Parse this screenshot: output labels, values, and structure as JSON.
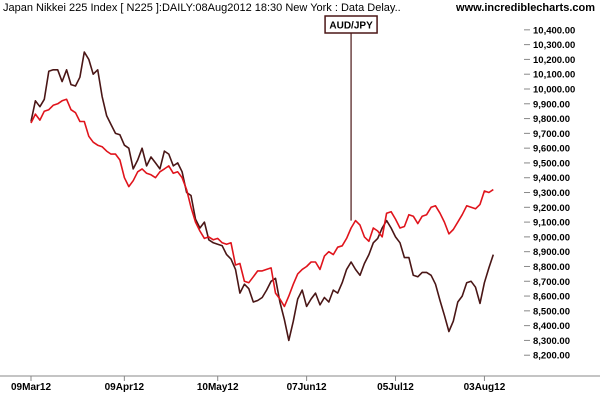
{
  "header": {
    "title": "Japan Nikkei 225 Index [ N225 ]:DAILY:08Aug2012 18:30 New York : Data Delay..",
    "site": "www.incrediblecharts.com"
  },
  "colors": {
    "nikkei_line": "#4a1616",
    "audjpy_line": "#e0141c",
    "annotation_border": "#4a1616",
    "axis": "#888888",
    "text": "#000000"
  },
  "chart_data": {
    "type": "line",
    "title": "Japan Nikkei 225 Index [ N225 ]:DAILY:08Aug2012 18:30 New York : Data Delay..",
    "x_tick_labels": [
      "09Mar12",
      "09Apr12",
      "10May12",
      "07Jun12",
      "05Jul12",
      "03Aug12"
    ],
    "x_tick_index": [
      0,
      21,
      42,
      62,
      82,
      102
    ],
    "y_ticks": [
      8200,
      8300,
      8400,
      8500,
      8600,
      8700,
      8800,
      8900,
      9000,
      9100,
      9200,
      9300,
      9400,
      9500,
      9600,
      9700,
      9800,
      9900,
      10000,
      10100,
      10200,
      10300,
      10400
    ],
    "y_tick_labels": [
      "8,200.00",
      "8,300.00",
      "8,400.00",
      "8,500.00",
      "8,600.00",
      "8,700.00",
      "8,800.00",
      "8,900.00",
      "9,000.00",
      "9,100.00",
      "9,200.00",
      "9,300.00",
      "9,400.00",
      "9,500.00",
      "9,600.00",
      "9,700.00",
      "9,800.00",
      "9,900.00",
      "10,000.00",
      "10,100.00",
      "10,200.00",
      "10,300.00",
      "10,400.00"
    ],
    "ylim": [
      8100,
      10480
    ],
    "x_count": 111,
    "annotation": {
      "label": "AUD/JPY",
      "at_index": 72,
      "at_value": 9110
    },
    "series": [
      {
        "key": "nikkei",
        "points": [
          [
            0,
            9780
          ],
          [
            1,
            9920
          ],
          [
            2,
            9880
          ],
          [
            3,
            9930
          ],
          [
            4,
            10120
          ],
          [
            5,
            10130
          ],
          [
            6,
            10130
          ],
          [
            7,
            10050
          ],
          [
            8,
            10130
          ],
          [
            9,
            10030
          ],
          [
            10,
            10020
          ],
          [
            11,
            10080
          ],
          [
            12,
            10250
          ],
          [
            13,
            10200
          ],
          [
            14,
            10100
          ],
          [
            15,
            10130
          ],
          [
            16,
            9950
          ],
          [
            17,
            9820
          ],
          [
            18,
            9760
          ],
          [
            19,
            9700
          ],
          [
            20,
            9690
          ],
          [
            21,
            9620
          ],
          [
            22,
            9600
          ],
          [
            23,
            9460
          ],
          [
            24,
            9520
          ],
          [
            25,
            9600
          ],
          [
            26,
            9480
          ],
          [
            27,
            9540
          ],
          [
            28,
            9500
          ],
          [
            29,
            9460
          ],
          [
            30,
            9580
          ],
          [
            31,
            9560
          ],
          [
            32,
            9480
          ],
          [
            33,
            9500
          ],
          [
            34,
            9440
          ],
          [
            35,
            9300
          ],
          [
            36,
            9280
          ],
          [
            37,
            9120
          ],
          [
            38,
            9060
          ],
          [
            39,
            9100
          ],
          [
            40,
            8980
          ],
          [
            41,
            8960
          ],
          [
            42,
            8950
          ],
          [
            43,
            8940
          ],
          [
            44,
            8880
          ],
          [
            45,
            8850
          ],
          [
            46,
            8780
          ],
          [
            47,
            8620
          ],
          [
            48,
            8680
          ],
          [
            49,
            8650
          ],
          [
            50,
            8560
          ],
          [
            51,
            8570
          ],
          [
            52,
            8590
          ],
          [
            53,
            8640
          ],
          [
            54,
            8700
          ],
          [
            55,
            8720
          ],
          [
            56,
            8560
          ],
          [
            57,
            8440
          ],
          [
            58,
            8300
          ],
          [
            59,
            8430
          ],
          [
            60,
            8580
          ],
          [
            61,
            8640
          ],
          [
            62,
            8530
          ],
          [
            63,
            8580
          ],
          [
            64,
            8620
          ],
          [
            65,
            8540
          ],
          [
            66,
            8590
          ],
          [
            67,
            8560
          ],
          [
            68,
            8640
          ],
          [
            69,
            8620
          ],
          [
            70,
            8690
          ],
          [
            71,
            8780
          ],
          [
            72,
            8830
          ],
          [
            73,
            8780
          ],
          [
            74,
            8740
          ],
          [
            75,
            8820
          ],
          [
            76,
            8880
          ],
          [
            77,
            8960
          ],
          [
            78,
            8990
          ],
          [
            79,
            9060
          ],
          [
            80,
            9110
          ],
          [
            81,
            9060
          ],
          [
            82,
            9000
          ],
          [
            83,
            8960
          ],
          [
            84,
            8860
          ],
          [
            85,
            8860
          ],
          [
            86,
            8740
          ],
          [
            87,
            8730
          ],
          [
            88,
            8760
          ],
          [
            89,
            8760
          ],
          [
            90,
            8740
          ],
          [
            91,
            8680
          ],
          [
            92,
            8570
          ],
          [
            93,
            8470
          ],
          [
            94,
            8360
          ],
          [
            95,
            8430
          ],
          [
            96,
            8560
          ],
          [
            97,
            8600
          ],
          [
            98,
            8690
          ],
          [
            99,
            8700
          ],
          [
            100,
            8660
          ],
          [
            101,
            8550
          ],
          [
            102,
            8690
          ],
          [
            103,
            8790
          ],
          [
            104,
            8880
          ]
        ]
      },
      {
        "key": "audjpy",
        "points": [
          [
            0,
            9770
          ],
          [
            1,
            9830
          ],
          [
            2,
            9790
          ],
          [
            3,
            9850
          ],
          [
            4,
            9860
          ],
          [
            5,
            9890
          ],
          [
            6,
            9900
          ],
          [
            7,
            9920
          ],
          [
            8,
            9930
          ],
          [
            9,
            9860
          ],
          [
            10,
            9840
          ],
          [
            11,
            9780
          ],
          [
            12,
            9780
          ],
          [
            13,
            9680
          ],
          [
            14,
            9640
          ],
          [
            15,
            9620
          ],
          [
            16,
            9610
          ],
          [
            17,
            9580
          ],
          [
            18,
            9560
          ],
          [
            19,
            9560
          ],
          [
            20,
            9520
          ],
          [
            21,
            9400
          ],
          [
            22,
            9340
          ],
          [
            23,
            9380
          ],
          [
            24,
            9440
          ],
          [
            25,
            9460
          ],
          [
            26,
            9430
          ],
          [
            27,
            9420
          ],
          [
            28,
            9400
          ],
          [
            29,
            9440
          ],
          [
            30,
            9460
          ],
          [
            31,
            9480
          ],
          [
            32,
            9430
          ],
          [
            33,
            9440
          ],
          [
            34,
            9400
          ],
          [
            35,
            9320
          ],
          [
            36,
            9200
          ],
          [
            37,
            9100
          ],
          [
            38,
            9040
          ],
          [
            39,
            8990
          ],
          [
            40,
            9000
          ],
          [
            41,
            8980
          ],
          [
            42,
            8990
          ],
          [
            43,
            8960
          ],
          [
            44,
            8950
          ],
          [
            45,
            8960
          ],
          [
            46,
            8810
          ],
          [
            47,
            8820
          ],
          [
            48,
            8700
          ],
          [
            49,
            8690
          ],
          [
            50,
            8730
          ],
          [
            51,
            8770
          ],
          [
            52,
            8770
          ],
          [
            53,
            8780
          ],
          [
            54,
            8790
          ],
          [
            55,
            8620
          ],
          [
            56,
            8580
          ],
          [
            57,
            8530
          ],
          [
            58,
            8600
          ],
          [
            59,
            8680
          ],
          [
            60,
            8750
          ],
          [
            61,
            8780
          ],
          [
            62,
            8800
          ],
          [
            63,
            8830
          ],
          [
            64,
            8830
          ],
          [
            65,
            8780
          ],
          [
            66,
            8870
          ],
          [
            67,
            8900
          ],
          [
            68,
            8880
          ],
          [
            69,
            8930
          ],
          [
            70,
            8940
          ],
          [
            71,
            8990
          ],
          [
            72,
            9060
          ],
          [
            73,
            9110
          ],
          [
            74,
            9080
          ],
          [
            75,
            9000
          ],
          [
            76,
            8970
          ],
          [
            77,
            9060
          ],
          [
            78,
            9040
          ],
          [
            79,
            9000
          ],
          [
            80,
            9160
          ],
          [
            81,
            9170
          ],
          [
            82,
            9120
          ],
          [
            83,
            9060
          ],
          [
            84,
            9070
          ],
          [
            85,
            9150
          ],
          [
            86,
            9140
          ],
          [
            87,
            9090
          ],
          [
            88,
            9140
          ],
          [
            89,
            9150
          ],
          [
            90,
            9200
          ],
          [
            91,
            9210
          ],
          [
            92,
            9160
          ],
          [
            93,
            9100
          ],
          [
            94,
            9020
          ],
          [
            95,
            9050
          ],
          [
            96,
            9100
          ],
          [
            97,
            9150
          ],
          [
            98,
            9210
          ],
          [
            99,
            9200
          ],
          [
            100,
            9190
          ],
          [
            101,
            9220
          ],
          [
            102,
            9310
          ],
          [
            103,
            9300
          ],
          [
            104,
            9320
          ]
        ]
      }
    ]
  }
}
